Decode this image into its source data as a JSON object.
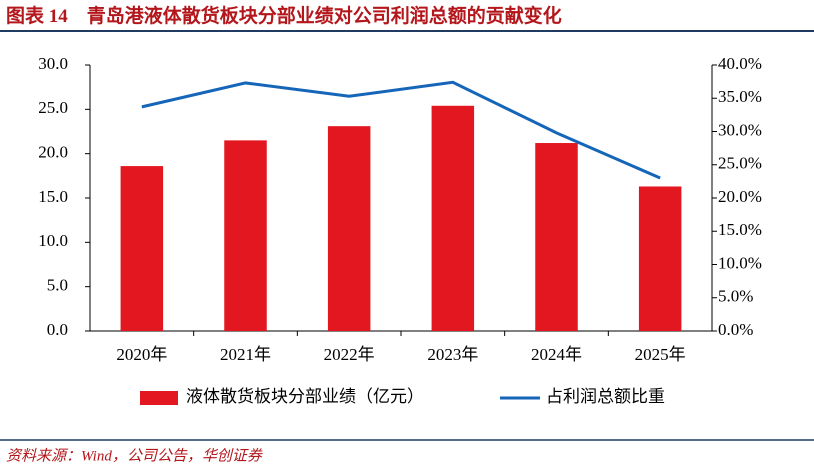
{
  "chart_data": {
    "type": "combo",
    "title": "图表 14　青岛港液体散货板块分部业绩对公司利润总额的贡献变化",
    "source": "资料来源：Wind，公司公告，华创证券",
    "categories": [
      "2020年",
      "2021年",
      "2022年",
      "2023年",
      "2024年",
      "2025年"
    ],
    "series": [
      {
        "name": "液体散货板块分部业绩（亿元）",
        "type": "bar",
        "color": "#e3171f",
        "axis": "y",
        "values": [
          18.6,
          21.5,
          23.1,
          25.4,
          21.2,
          16.3
        ]
      },
      {
        "name": "占利润总额比重",
        "type": "line",
        "color": "#1565b8",
        "axis": "y2",
        "values": [
          33.7,
          37.3,
          35.3,
          37.4,
          29.8,
          23.0
        ]
      }
    ],
    "ylim": [
      0,
      30
    ],
    "yticks": [
      {
        "value": 0,
        "label": "0.0"
      },
      {
        "value": 5,
        "label": "5.0"
      },
      {
        "value": 10,
        "label": "10.0"
      },
      {
        "value": 15,
        "label": "15.0"
      },
      {
        "value": 20,
        "label": "20.0"
      },
      {
        "value": 25,
        "label": "25.0"
      },
      {
        "value": 30,
        "label": "30.0"
      }
    ],
    "y2lim": [
      0,
      40
    ],
    "y2ticks": [
      {
        "value": 0,
        "label": "0.0%"
      },
      {
        "value": 5,
        "label": "5.0%"
      },
      {
        "value": 10,
        "label": "10.0%"
      },
      {
        "value": 15,
        "label": "15.0%"
      },
      {
        "value": 20,
        "label": "20.0%"
      },
      {
        "value": 25,
        "label": "25.0%"
      },
      {
        "value": 30,
        "label": "30.0%"
      },
      {
        "value": 35,
        "label": "35.0%"
      },
      {
        "value": 40,
        "label": "40.0%"
      }
    ],
    "grid": false
  }
}
